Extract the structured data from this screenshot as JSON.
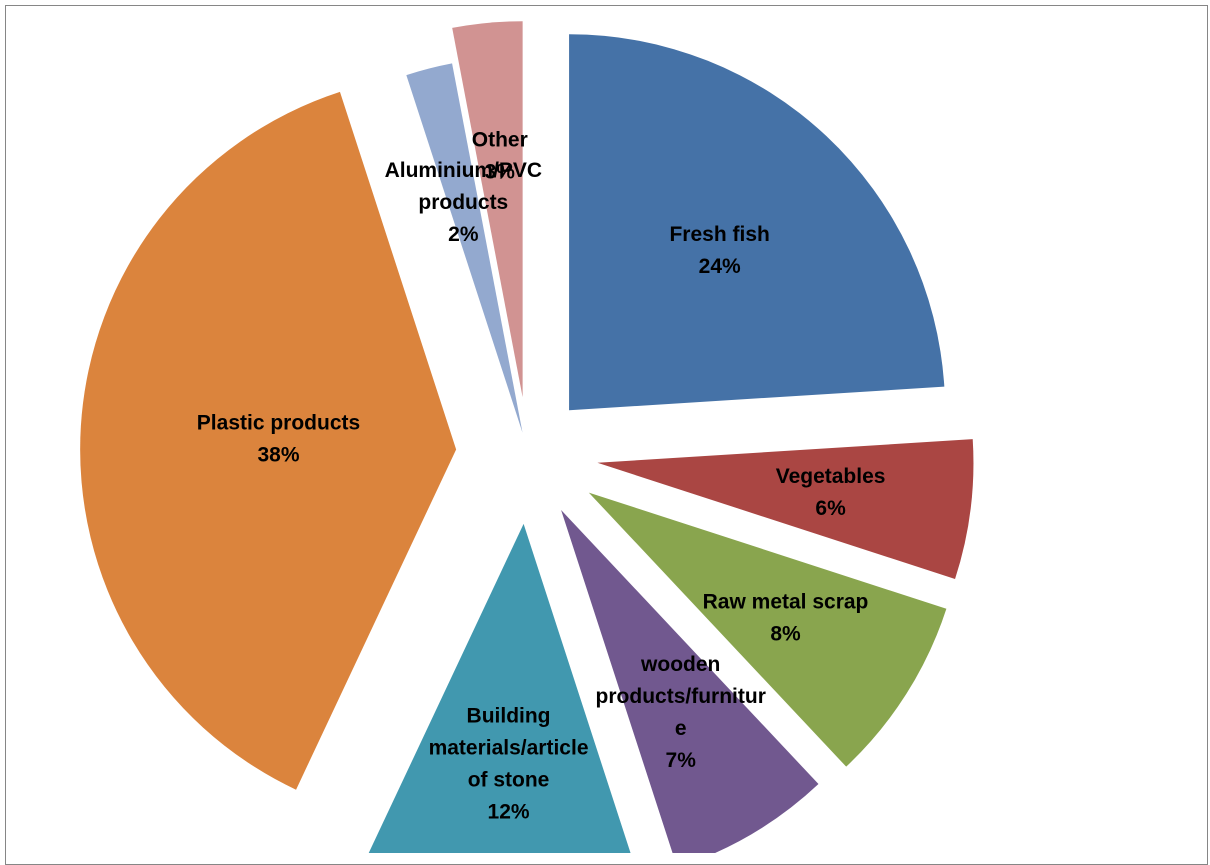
{
  "chart_data": {
    "type": "pie",
    "title": "",
    "exploded": true,
    "labels_show": "category name and percentage",
    "slices": [
      {
        "name": "Fresh fish",
        "value": 24,
        "label_lines": [
          "Fresh fish"
        ],
        "pct_label": "24%",
        "color": "#4572A7"
      },
      {
        "name": "Vegetables",
        "value": 6,
        "label_lines": [
          "Vegetables"
        ],
        "pct_label": "6%",
        "color": "#AA4643"
      },
      {
        "name": "Raw metal scrap",
        "value": 8,
        "label_lines": [
          "Raw metal scrap"
        ],
        "pct_label": "8%",
        "color": "#89A54E"
      },
      {
        "name": "wooden products/furniture",
        "value": 7,
        "label_lines": [
          "wooden",
          "products/furnitur",
          "e"
        ],
        "pct_label": "7%",
        "color": "#71588F"
      },
      {
        "name": "Building materials/article of stone",
        "value": 12,
        "label_lines": [
          "Building",
          "materials/article",
          "of stone"
        ],
        "pct_label": "12%",
        "color": "#4198AF"
      },
      {
        "name": "Plastic products",
        "value": 38,
        "label_lines": [
          "Plastic products"
        ],
        "pct_label": "38%",
        "color": "#DB843D"
      },
      {
        "name": "Aluminium/PVC products",
        "value": 2,
        "label_lines": [
          "Aluminium/PVC",
          "products"
        ],
        "pct_label": "2%",
        "color": "#93A9CF"
      },
      {
        "name": "Other",
        "value": 3,
        "label_lines": [
          "Other"
        ],
        "pct_label": "3%",
        "color": "#D19392"
      }
    ]
  }
}
